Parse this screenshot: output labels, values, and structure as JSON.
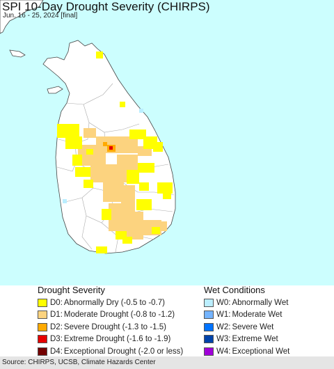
{
  "title": "SPI 10-Day Drought Severity (CHIRPS)",
  "subtitle": "Jun. 16 - 25, 2024 [final]",
  "colors": {
    "sea": "#ccfefe",
    "land": "#ffffff",
    "india": "#ffffff",
    "border": "#444444",
    "district": "#aaaaaa"
  },
  "legend": {
    "drought": {
      "heading": "Drought Severity",
      "items": [
        {
          "code": "D0:",
          "label": "Abnormally Dry (-0.5 to -0.7)",
          "color": "#ffff00"
        },
        {
          "code": "D1:",
          "label": "Moderate Drought (-0.8 to -1.2)",
          "color": "#fcd37f"
        },
        {
          "code": "D2:",
          "label": "Severe Drought (-1.3 to -1.5)",
          "color": "#ffaa00"
        },
        {
          "code": "D3:",
          "label": "Extreme Drought (-1.6 to -1.9)",
          "color": "#e60000"
        },
        {
          "code": "D4:",
          "label": "Exceptional Drought (-2.0 or less)",
          "color": "#730000"
        }
      ]
    },
    "wet": {
      "heading": "Wet Conditions",
      "items": [
        {
          "code": "W0:",
          "label": "Abnormally Wet",
          "color": "#bbeeff"
        },
        {
          "code": "W1:",
          "label": "Moderate Wet",
          "color": "#74b4ff"
        },
        {
          "code": "W2:",
          "label": "Severe Wet",
          "color": "#0073ff"
        },
        {
          "code": "W3:",
          "label": "Extreme Wet",
          "color": "#0043aa"
        },
        {
          "code": "W4:",
          "label": "Exceptional Wet",
          "color": "#a000d8"
        }
      ]
    }
  },
  "source": "Source: CHIRPS, UCSB, Climate Hazards Center"
}
